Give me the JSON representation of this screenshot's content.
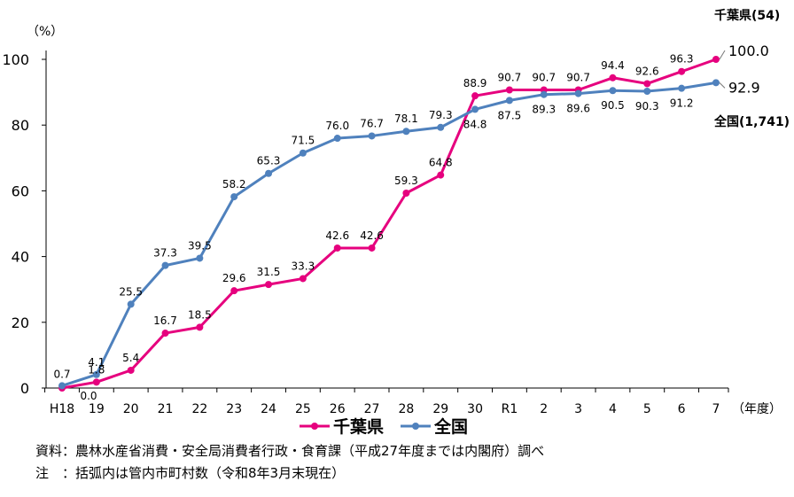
{
  "chart_data": {
    "type": "line",
    "ylabel": "（%）",
    "xunit": "（年度）",
    "ylim": [
      0,
      100
    ],
    "yticks": [
      0,
      20,
      40,
      60,
      80,
      100
    ],
    "grid": false,
    "legend_position": "bottom",
    "categories": [
      "H18",
      "19",
      "20",
      "21",
      "22",
      "23",
      "24",
      "25",
      "26",
      "27",
      "28",
      "29",
      "30",
      "R1",
      "2",
      "3",
      "4",
      "5",
      "6",
      "7"
    ],
    "series": [
      {
        "name": "千葉県",
        "color": "#e6007e",
        "values": [
          0.0,
          1.8,
          5.4,
          16.7,
          18.5,
          29.6,
          31.5,
          33.3,
          42.6,
          42.6,
          59.3,
          64.8,
          88.9,
          90.7,
          90.7,
          90.7,
          94.4,
          92.6,
          96.3,
          100.0
        ],
        "labels": [
          "0.0",
          "1.8",
          "5.4",
          "16.7",
          "18.5",
          "29.6",
          "31.5",
          "33.3",
          "42.6",
          "42.6",
          "59.3",
          "64.8",
          "88.9",
          "90.7",
          "90.7",
          "90.7",
          "94.4",
          "92.6",
          "96.3",
          "100.0"
        ],
        "end_annotation": "千葉県(54)"
      },
      {
        "name": "全国",
        "color": "#4f81bd",
        "values": [
          0.7,
          4.1,
          25.5,
          37.3,
          39.5,
          58.2,
          65.3,
          71.5,
          76.0,
          76.7,
          78.1,
          79.3,
          84.8,
          87.5,
          89.3,
          89.6,
          90.5,
          90.3,
          91.2,
          92.9
        ],
        "labels": [
          "0.7",
          "4.1",
          "25.5",
          "37.3",
          "39.5",
          "58.2",
          "65.3",
          "71.5",
          "76.0",
          "76.7",
          "78.1",
          "79.3",
          "84.8",
          "87.5",
          "89.3",
          "89.6",
          "90.5",
          "90.3",
          "91.2",
          "92.9"
        ],
        "end_annotation": "全国(1,741)"
      }
    ]
  },
  "notes": {
    "source": "資料：農林水産省消費・安全局消費者行政・食育課（平成27年度までは内閣府）調べ",
    "note": "注　：括弧内は管内市町村数（令和8年3月末現在）"
  }
}
